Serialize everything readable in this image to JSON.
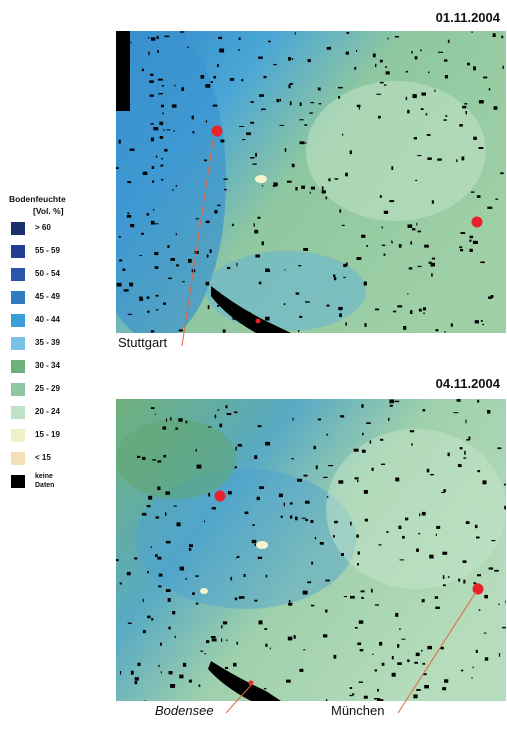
{
  "panels": [
    {
      "date": "01.11.2004"
    },
    {
      "date": "04.11.2004"
    }
  ],
  "legend": {
    "title": "Bodenfeuchte",
    "unit": "[Vol. %]",
    "classes": [
      {
        "label": "> 60",
        "color": "#1c2f6e"
      },
      {
        "label": "55 - 59",
        "color": "#233e93"
      },
      {
        "label": "50 - 54",
        "color": "#2a55ab"
      },
      {
        "label": "45 - 49",
        "color": "#2f7cc3"
      },
      {
        "label": "40 - 44",
        "color": "#3c9ed8"
      },
      {
        "label": "35 - 39",
        "color": "#77c2e6"
      },
      {
        "label": "30 - 34",
        "color": "#6fb07a"
      },
      {
        "label": "25 - 29",
        "color": "#8fc7a0"
      },
      {
        "label": "20 - 24",
        "color": "#bfe2c7"
      },
      {
        "label": "15 - 19",
        "color": "#f0f1c8"
      },
      {
        "label": "< 15",
        "color": "#f4e0b6"
      },
      {
        "label": "keine Daten",
        "color": "#000000"
      }
    ]
  },
  "places": {
    "stuttgart": "Stuttgart",
    "bodensee": "Bodensee",
    "muenchen": "München"
  },
  "colors": {
    "city_marker": "#e8222b",
    "leader_line": "#e2663b"
  }
}
